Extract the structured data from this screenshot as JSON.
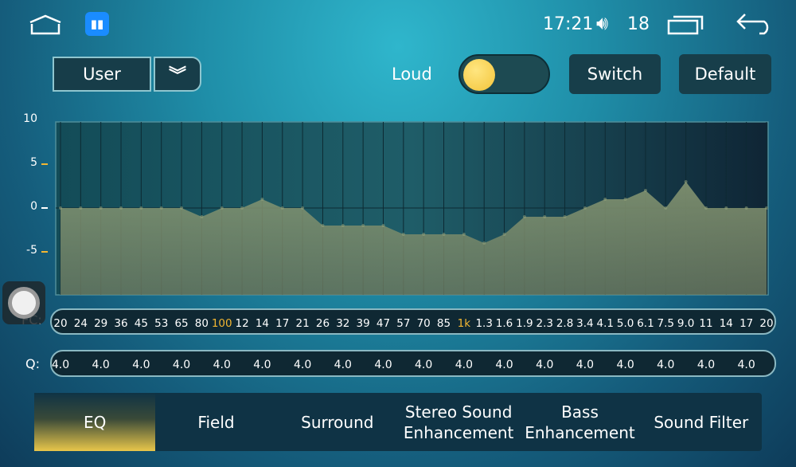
{
  "status": {
    "time": "17:21",
    "volume": "18"
  },
  "preset": {
    "selected": "User"
  },
  "loud": {
    "label": "Loud",
    "on": false
  },
  "buttons": {
    "switch": "Switch",
    "default": "Default"
  },
  "colors": {
    "highlight": "#f2b632",
    "fill": "#7a8a6a",
    "toggle_knob": "#f3c43a"
  },
  "chart_data": {
    "type": "area",
    "ylim": [
      -10,
      10
    ],
    "yticks": [
      "10",
      "5",
      "0",
      "-5"
    ],
    "categories": [
      "20",
      "24",
      "29",
      "36",
      "45",
      "53",
      "65",
      "80",
      "100",
      "12",
      "14",
      "17",
      "21",
      "26",
      "32",
      "39",
      "47",
      "57",
      "70",
      "85",
      "1k",
      "1.3",
      "1.6",
      "1.9",
      "2.3",
      "2.8",
      "3.4",
      "4.1",
      "5.0",
      "6.1",
      "7.5",
      "9.0",
      "11",
      "14",
      "17",
      "20"
    ],
    "values": [
      0,
      0,
      0,
      0,
      0,
      0,
      0,
      -1,
      0,
      0,
      1,
      0,
      0,
      -2,
      -2,
      -2,
      -2,
      -3,
      -3,
      -3,
      -3,
      -4,
      -3,
      -1,
      -1,
      -1,
      0,
      1,
      1,
      2,
      0,
      3,
      0,
      0,
      0,
      0
    ],
    "highlighted": [
      "100",
      "1k"
    ],
    "grid": true
  },
  "fc": {
    "label": "FC:"
  },
  "q": {
    "label": "Q:",
    "values": [
      "4.0",
      "4.0",
      "4.0",
      "4.0",
      "4.0",
      "4.0",
      "4.0",
      "4.0",
      "4.0",
      "4.0",
      "4.0",
      "4.0",
      "4.0",
      "4.0",
      "4.0",
      "4.0",
      "4.0",
      "4.0"
    ]
  },
  "tabs": [
    {
      "label": "EQ",
      "active": true
    },
    {
      "label": "Field"
    },
    {
      "label": "Surround"
    },
    {
      "label": "Stereo Sound Enhancement"
    },
    {
      "label": "Bass Enhancement"
    },
    {
      "label": "Sound Filter"
    }
  ]
}
